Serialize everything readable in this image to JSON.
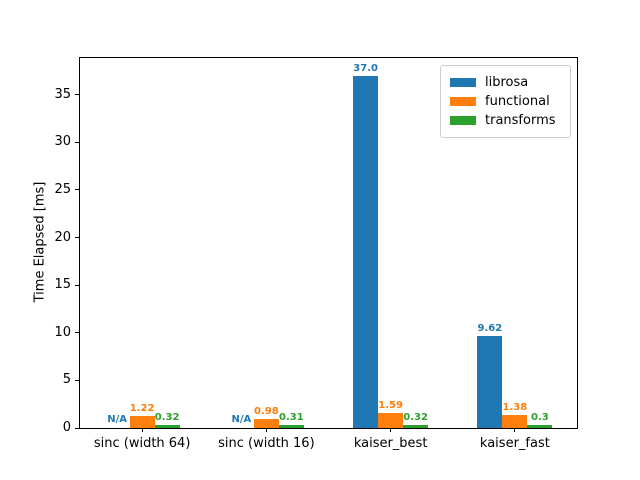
{
  "chart_data": {
    "type": "bar",
    "title": "",
    "xlabel": "",
    "ylabel": "Time Elapsed [ms]",
    "ylim": [
      0,
      38.85
    ],
    "yticks": [
      0,
      5,
      10,
      15,
      20,
      25,
      30,
      35
    ],
    "grid": false,
    "categories": [
      "sinc (width 64)",
      "sinc (width 16)",
      "kaiser_best",
      "kaiser_fast"
    ],
    "series": [
      {
        "name": "librosa",
        "color": "#1f77b4",
        "values": [
          null,
          null,
          37.0,
          9.62
        ],
        "value_labels": [
          "N/A",
          "N/A",
          "37.0",
          "9.62"
        ]
      },
      {
        "name": "functional",
        "color": "#ff7f0e",
        "values": [
          1.22,
          0.98,
          1.59,
          1.38
        ],
        "value_labels": [
          "1.22",
          "0.98",
          "1.59",
          "1.38"
        ]
      },
      {
        "name": "transforms",
        "color": "#2ca02c",
        "values": [
          0.32,
          0.31,
          0.32,
          0.3
        ],
        "value_labels": [
          "0.32",
          "0.31",
          "0.32",
          "0.3"
        ]
      }
    ],
    "legend": {
      "position": "upper right"
    }
  }
}
